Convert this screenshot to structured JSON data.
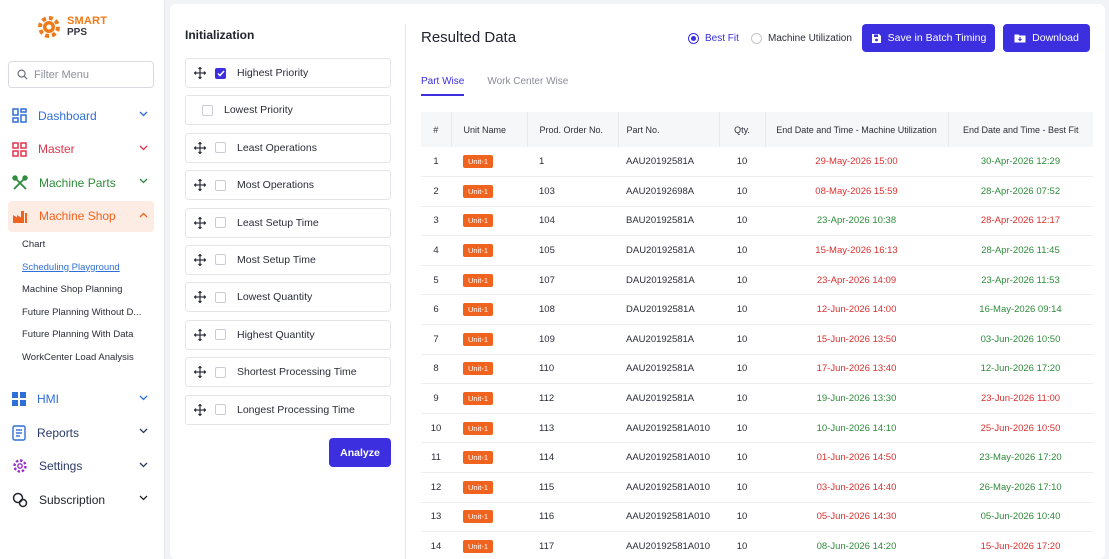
{
  "logo": {
    "line1": "SMART",
    "line2": "PPS",
    "color": "#f07a1a"
  },
  "sidebar": {
    "filter_placeholder": "Filter Menu",
    "items": [
      {
        "label": "Dashboard",
        "icon": "dashboard-icon",
        "color": "#2f6fd6"
      },
      {
        "label": "Master",
        "icon": "master-grid-icon",
        "color": "#e0344c"
      },
      {
        "label": "Machine Parts",
        "icon": "tools-icon",
        "color": "#2e8b3a"
      },
      {
        "label": "Machine Shop",
        "icon": "factory-icon",
        "color": "#f0631e"
      },
      {
        "label": "HMI",
        "icon": "windows-grid-icon",
        "color": "#2f6fd6"
      },
      {
        "label": "Reports",
        "icon": "reports-icon",
        "color": "#2f6fd6"
      },
      {
        "label": "Settings",
        "icon": "gear-icon",
        "color": "#9a2fc9"
      },
      {
        "label": "Subscription",
        "icon": "subscription-icon",
        "color": "#22242e"
      }
    ],
    "machine_shop_sub": [
      "Chart",
      "Scheduling Playground",
      "Machine Shop Planning",
      "Future Planning Without D...",
      "Future Planning With Data",
      "WorkCenter Load Analysis"
    ]
  },
  "init": {
    "title": "Initialization",
    "rules": [
      {
        "label": "Highest Priority",
        "checked": true,
        "draggable": true
      },
      {
        "label": "Lowest Priority",
        "checked": false,
        "draggable": false
      },
      {
        "label": "Least Operations",
        "checked": false,
        "draggable": true
      },
      {
        "label": "Most Operations",
        "checked": false,
        "draggable": true
      },
      {
        "label": "Least Setup Time",
        "checked": false,
        "draggable": true
      },
      {
        "label": "Most Setup Time",
        "checked": false,
        "draggable": true
      },
      {
        "label": "Lowest Quantity",
        "checked": false,
        "draggable": true
      },
      {
        "label": "Highest Quantity",
        "checked": false,
        "draggable": true
      },
      {
        "label": "Shortest Processing Time",
        "checked": false,
        "draggable": true
      },
      {
        "label": "Longest Processing Time",
        "checked": false,
        "draggable": true
      }
    ],
    "analyze_label": "Analyze"
  },
  "results": {
    "title": "Resulted Data",
    "radio_best_fit": "Best Fit",
    "radio_machine_util": "Machine Utilization",
    "save_label": "Save in Batch Timing",
    "download_label": "Download",
    "tabs": [
      "Part Wise",
      "Work Center Wise"
    ],
    "columns": [
      "#",
      "Unit Name",
      "Prod. Order No.",
      "Part No.",
      "Qty.",
      "End Date and Time - Machine Utilization",
      "End Date and Time - Best Fit"
    ],
    "rows": [
      {
        "n": "1",
        "unit": "Unit-1",
        "order": "1",
        "part": "AAU20192581A",
        "qty": "10",
        "mu": "29-May-2026 15:00",
        "mu_c": "red",
        "bf": "30-Apr-2026 12:29",
        "bf_c": "green"
      },
      {
        "n": "2",
        "unit": "Unit-1",
        "order": "103",
        "part": "AAU20192698A",
        "qty": "10",
        "mu": "08-May-2026 15:59",
        "mu_c": "red",
        "bf": "28-Apr-2026 07:52",
        "bf_c": "green"
      },
      {
        "n": "3",
        "unit": "Unit-1",
        "order": "104",
        "part": "BAU20192581A",
        "qty": "10",
        "mu": "23-Apr-2026 10:38",
        "mu_c": "green",
        "bf": "28-Apr-2026 12:17",
        "bf_c": "red"
      },
      {
        "n": "4",
        "unit": "Unit-1",
        "order": "105",
        "part": "DAU20192581A",
        "qty": "10",
        "mu": "15-May-2026 16:13",
        "mu_c": "red",
        "bf": "28-Apr-2026 11:45",
        "bf_c": "green"
      },
      {
        "n": "5",
        "unit": "Unit-1",
        "order": "107",
        "part": "DAU20192581A",
        "qty": "10",
        "mu": "23-Apr-2026 14:09",
        "mu_c": "red",
        "bf": "23-Apr-2026 11:53",
        "bf_c": "green"
      },
      {
        "n": "6",
        "unit": "Unit-1",
        "order": "108",
        "part": "DAU20192581A",
        "qty": "10",
        "mu": "12-Jun-2026 14:00",
        "mu_c": "red",
        "bf": "16-May-2026 09:14",
        "bf_c": "green"
      },
      {
        "n": "7",
        "unit": "Unit-1",
        "order": "109",
        "part": "AAU20192581A",
        "qty": "10",
        "mu": "15-Jun-2026 13:50",
        "mu_c": "red",
        "bf": "03-Jun-2026 10:50",
        "bf_c": "green"
      },
      {
        "n": "8",
        "unit": "Unit-1",
        "order": "110",
        "part": "AAU20192581A",
        "qty": "10",
        "mu": "17-Jun-2026 13:40",
        "mu_c": "red",
        "bf": "12-Jun-2026 17:20",
        "bf_c": "green"
      },
      {
        "n": "9",
        "unit": "Unit-1",
        "order": "112",
        "part": "AAU20192581A",
        "qty": "10",
        "mu": "19-Jun-2026 13:30",
        "mu_c": "green",
        "bf": "23-Jun-2026 11:00",
        "bf_c": "red"
      },
      {
        "n": "10",
        "unit": "Unit-1",
        "order": "113",
        "part": "AAU20192581A010",
        "qty": "10",
        "mu": "10-Jun-2026 14:10",
        "mu_c": "green",
        "bf": "25-Jun-2026 10:50",
        "bf_c": "red"
      },
      {
        "n": "11",
        "unit": "Unit-1",
        "order": "114",
        "part": "AAU20192581A010",
        "qty": "10",
        "mu": "01-Jun-2026 14:50",
        "mu_c": "red",
        "bf": "23-May-2026 17:20",
        "bf_c": "green"
      },
      {
        "n": "12",
        "unit": "Unit-1",
        "order": "115",
        "part": "AAU20192581A010",
        "qty": "10",
        "mu": "03-Jun-2026 14:40",
        "mu_c": "red",
        "bf": "26-May-2026 17:10",
        "bf_c": "green"
      },
      {
        "n": "13",
        "unit": "Unit-1",
        "order": "116",
        "part": "AAU20192581A010",
        "qty": "10",
        "mu": "05-Jun-2026 14:30",
        "mu_c": "red",
        "bf": "05-Jun-2026 10:40",
        "bf_c": "green"
      },
      {
        "n": "14",
        "unit": "Unit-1",
        "order": "117",
        "part": "AAU20192581A010",
        "qty": "10",
        "mu": "08-Jun-2026 14:20",
        "mu_c": "green",
        "bf": "15-Jun-2026 17:20",
        "bf_c": "red"
      }
    ]
  }
}
